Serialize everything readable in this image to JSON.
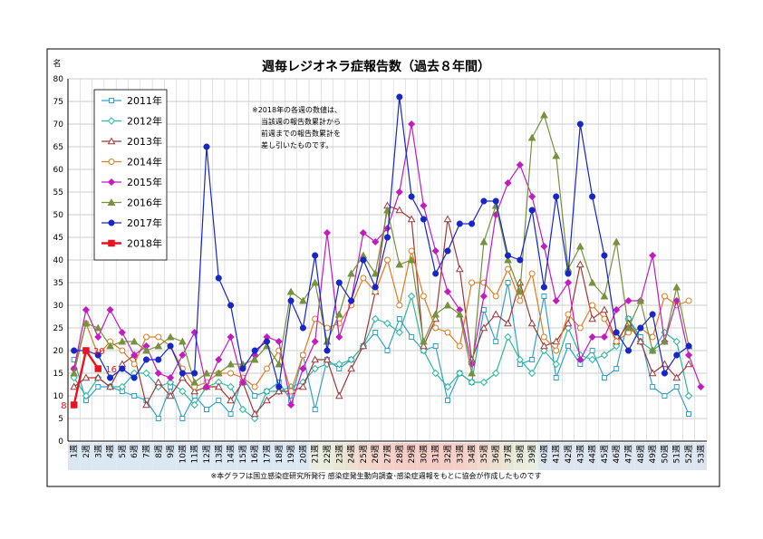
{
  "chart_data": {
    "type": "line",
    "title": "週毎レジオネラ症報告数（過去８年間）",
    "ylabel": "名",
    "ylim": [
      0,
      80
    ],
    "yticks": [
      0,
      5,
      10,
      15,
      20,
      25,
      30,
      35,
      40,
      45,
      50,
      55,
      60,
      65,
      70,
      75,
      80
    ],
    "grid": true,
    "legend_position": "top-left",
    "categories": [
      "1週",
      "2週",
      "3週",
      "4週",
      "5週",
      "6週",
      "7週",
      "8週",
      "9週",
      "10週",
      "11週",
      "12週",
      "13週",
      "14週",
      "15週",
      "16週",
      "17週",
      "18週",
      "19週",
      "20週",
      "21週",
      "22週",
      "23週",
      "24週",
      "25週",
      "26週",
      "27週",
      "28週",
      "29週",
      "30週",
      "31週",
      "32週",
      "33週",
      "34週",
      "35週",
      "36週",
      "37週",
      "38週",
      "39週",
      "40週",
      "41週",
      "42週",
      "43週",
      "44週",
      "45週",
      "46週",
      "47週",
      "48週",
      "49週",
      "50週",
      "51週",
      "52週",
      "53週"
    ],
    "annotation": "※2018年の各週の数値は、\n当該週の報告数累計から\n前週までの報告数累計を\n差し引いたものです。",
    "footnote": "※本グラフは国立感染症研究所発行 感染症発生動向調査･感染症週報をもとに協会が作成したものです",
    "series": [
      {
        "name": "2011年",
        "color": "#31a2c9",
        "marker": "square-open",
        "values": [
          18,
          9,
          12,
          12,
          11,
          10,
          9,
          5,
          12,
          5,
          10,
          7,
          9,
          6,
          14,
          10,
          11,
          13,
          9,
          19,
          7,
          18,
          16,
          18,
          21,
          24,
          20,
          27,
          23,
          20,
          21,
          9,
          15,
          13,
          29,
          22,
          35,
          17,
          18,
          32,
          14,
          21,
          17,
          20,
          14,
          16,
          27,
          23,
          12,
          10,
          12,
          6,
          null
        ]
      },
      {
        "name": "2012年",
        "color": "#2db89e",
        "marker": "diamond-open",
        "values": [
          14,
          10,
          14,
          12,
          12,
          15,
          15,
          12,
          13,
          11,
          8,
          12,
          13,
          12,
          7,
          5,
          11,
          11,
          12,
          13,
          16,
          17,
          17,
          18,
          21,
          27,
          26,
          24,
          32,
          20,
          15,
          12,
          15,
          13,
          13,
          15,
          23,
          18,
          15,
          20,
          17,
          25,
          19,
          18,
          19,
          21,
          27,
          22,
          20,
          24,
          22,
          10,
          null
        ]
      },
      {
        "name": "2013年",
        "color": "#9e3838",
        "marker": "triangle-open",
        "values": [
          12,
          14,
          14,
          12,
          17,
          19,
          8,
          13,
          10,
          14,
          11,
          12,
          12,
          9,
          13,
          6,
          9,
          11,
          11,
          12,
          18,
          18,
          10,
          16,
          21,
          33,
          52,
          51,
          49,
          21,
          27,
          49,
          38,
          18,
          25,
          28,
          26,
          35,
          26,
          21,
          22,
          26,
          39,
          27,
          29,
          22,
          26,
          22,
          15,
          17,
          14,
          17,
          null
        ]
      },
      {
        "name": "2014年",
        "color": "#e07a1f",
        "marker": "circle-open",
        "values": [
          16,
          26,
          19,
          22,
          20,
          17,
          23,
          23,
          21,
          16,
          12,
          13,
          15,
          15,
          14,
          12,
          16,
          20,
          11,
          19,
          27,
          25,
          26,
          30,
          36,
          33,
          40,
          30,
          42,
          32,
          25,
          24,
          21,
          35,
          35,
          32,
          38,
          31,
          37,
          23,
          20,
          28,
          25,
          30,
          27,
          22,
          24,
          25,
          23,
          32,
          30,
          31,
          null
        ]
      },
      {
        "name": "2015年",
        "color": "#c41bc0",
        "marker": "diamond",
        "values": [
          16,
          29,
          23,
          29,
          24,
          19,
          21,
          15,
          14,
          19,
          24,
          12,
          18,
          23,
          13,
          19,
          23,
          22,
          8,
          16,
          22,
          46,
          23,
          31,
          46,
          44,
          47,
          55,
          70,
          52,
          42,
          33,
          29,
          17,
          32,
          50,
          57,
          61,
          54,
          43,
          31,
          35,
          18,
          23,
          23,
          29,
          31,
          31,
          41,
          22,
          31,
          19,
          12
        ]
      },
      {
        "name": "2016年",
        "color": "#76923c",
        "marker": "triangle",
        "values": [
          15,
          26,
          25,
          21,
          22,
          22,
          20,
          21,
          23,
          22,
          13,
          15,
          15,
          17,
          17,
          18,
          21,
          17,
          33,
          31,
          35,
          22,
          28,
          37,
          41,
          37,
          51,
          39,
          40,
          22,
          28,
          30,
          28,
          15,
          44,
          52,
          40,
          33,
          67,
          72,
          63,
          38,
          43,
          35,
          32,
          44,
          25,
          31,
          20,
          22,
          34,
          21,
          null
        ]
      },
      {
        "name": "2017年",
        "color": "#1727c7",
        "marker": "circle",
        "values": [
          20,
          20,
          19,
          14,
          16,
          14,
          18,
          18,
          21,
          15,
          15,
          65,
          36,
          30,
          16,
          20,
          22,
          12,
          31,
          25,
          41,
          20,
          35,
          31,
          40,
          34,
          45,
          76,
          54,
          49,
          37,
          42,
          48,
          48,
          53,
          53,
          41,
          40,
          51,
          34,
          54,
          37,
          70,
          54,
          41,
          24,
          20,
          25,
          28,
          15,
          19,
          21,
          null
        ]
      },
      {
        "name": "2018年",
        "color": "#e8131e",
        "marker": "square",
        "values": [
          8,
          20,
          16,
          null,
          null,
          null,
          null,
          null,
          null,
          null,
          null,
          null,
          null,
          null,
          null,
          null,
          null,
          null,
          null,
          null,
          null,
          null,
          null,
          null,
          null,
          null,
          null,
          null,
          null,
          null,
          null,
          null,
          null,
          null,
          null,
          null,
          null,
          null,
          null,
          null,
          null,
          null,
          null,
          null,
          null,
          null,
          null,
          null,
          null,
          null,
          null,
          null,
          null
        ],
        "data_labels": [
          "8",
          "20",
          "16"
        ]
      }
    ]
  }
}
